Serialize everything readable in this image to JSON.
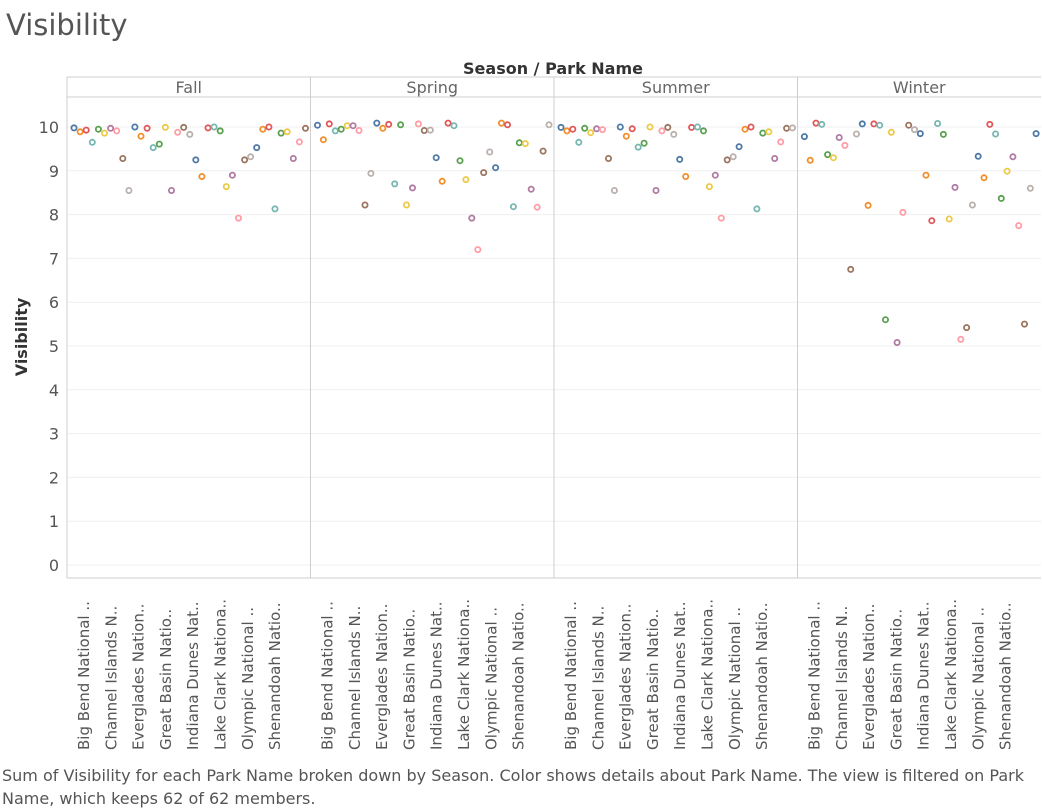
{
  "page": {
    "title": "Visibility",
    "caption": "Sum of Visibility for each Park Name broken down by Season.  Color shows details about Park Name. The view is filtered on Park Name, which keeps 62 of 62 members."
  },
  "chart_data": {
    "type": "scatter",
    "column_header_title": "Season / Park Name",
    "ylabel": "Visibility",
    "ylim": [
      0,
      10
    ],
    "y_ticks": [
      0,
      1,
      2,
      3,
      4,
      5,
      6,
      7,
      8,
      9,
      10
    ],
    "grid": "horizontal",
    "panels": [
      "Fall",
      "Spring",
      "Summer",
      "Winter"
    ],
    "x_tick_labels": [
      "Big Bend National ..",
      "Channel Islands N..",
      "Everglades Nation..",
      "Great Basin Natio..",
      "Indiana Dunes Nat..",
      "Lake Clark Nationa..",
      "Olympic National ..",
      "Shenandoah Natio.."
    ],
    "colors": [
      "#4e79a7",
      "#f28e2b",
      "#e15759",
      "#76b7b2",
      "#59a14f",
      "#edc948",
      "#b07aa1",
      "#ff9da7",
      "#9c755f",
      "#bab0ac"
    ],
    "series": [
      {
        "season": "Fall",
        "values": [
          9.98,
          9.89,
          9.93,
          9.65,
          9.95,
          9.86,
          9.97,
          9.91,
          9.28,
          8.55,
          10.0,
          9.79,
          9.97,
          9.53,
          9.61,
          9.99,
          8.55,
          9.88,
          9.99,
          9.83,
          9.25,
          8.87,
          9.98,
          10.0,
          9.91,
          8.64,
          8.9,
          7.92,
          9.25,
          9.32,
          9.53,
          9.95,
          10.0,
          8.13,
          9.86,
          9.89,
          9.28,
          9.66,
          9.97
        ]
      },
      {
        "season": "Spring",
        "values": [
          10.04,
          9.71,
          10.07,
          9.91,
          9.95,
          10.03,
          10.03,
          9.92,
          8.22,
          8.94,
          10.09,
          9.97,
          10.06,
          8.7,
          10.05,
          8.22,
          8.61,
          10.07,
          9.92,
          9.93,
          9.3,
          8.76,
          10.09,
          10.03,
          9.23,
          8.8,
          7.92,
          7.2,
          8.96,
          9.43,
          9.07,
          10.09,
          10.05,
          8.18,
          9.64,
          9.62,
          8.58,
          8.17,
          9.45,
          10.05
        ]
      },
      {
        "season": "Summer",
        "values": [
          9.99,
          9.91,
          9.95,
          9.65,
          9.97,
          9.87,
          9.96,
          9.94,
          9.28,
          8.55,
          10.0,
          9.79,
          9.96,
          9.54,
          9.63,
          10.0,
          8.55,
          9.91,
          9.99,
          9.83,
          9.26,
          8.87,
          9.99,
          10.0,
          9.91,
          8.64,
          8.9,
          7.92,
          9.25,
          9.32,
          9.55,
          9.95,
          10.0,
          8.13,
          9.86,
          9.89,
          9.28,
          9.66,
          9.97,
          9.98
        ]
      },
      {
        "season": "Winter",
        "values": [
          9.78,
          9.24,
          10.09,
          10.06,
          9.37,
          9.3,
          9.76,
          9.58,
          6.75,
          9.84,
          10.07,
          8.21,
          10.07,
          10.04,
          5.6,
          9.88,
          5.08,
          8.05,
          10.04,
          9.94,
          9.85,
          8.9,
          7.86,
          10.08,
          9.83,
          7.9,
          8.62,
          5.15,
          5.42,
          8.22,
          9.33,
          8.84,
          10.06,
          9.84,
          8.37,
          8.99,
          9.32,
          7.75,
          5.5,
          8.6,
          9.85
        ]
      }
    ]
  }
}
